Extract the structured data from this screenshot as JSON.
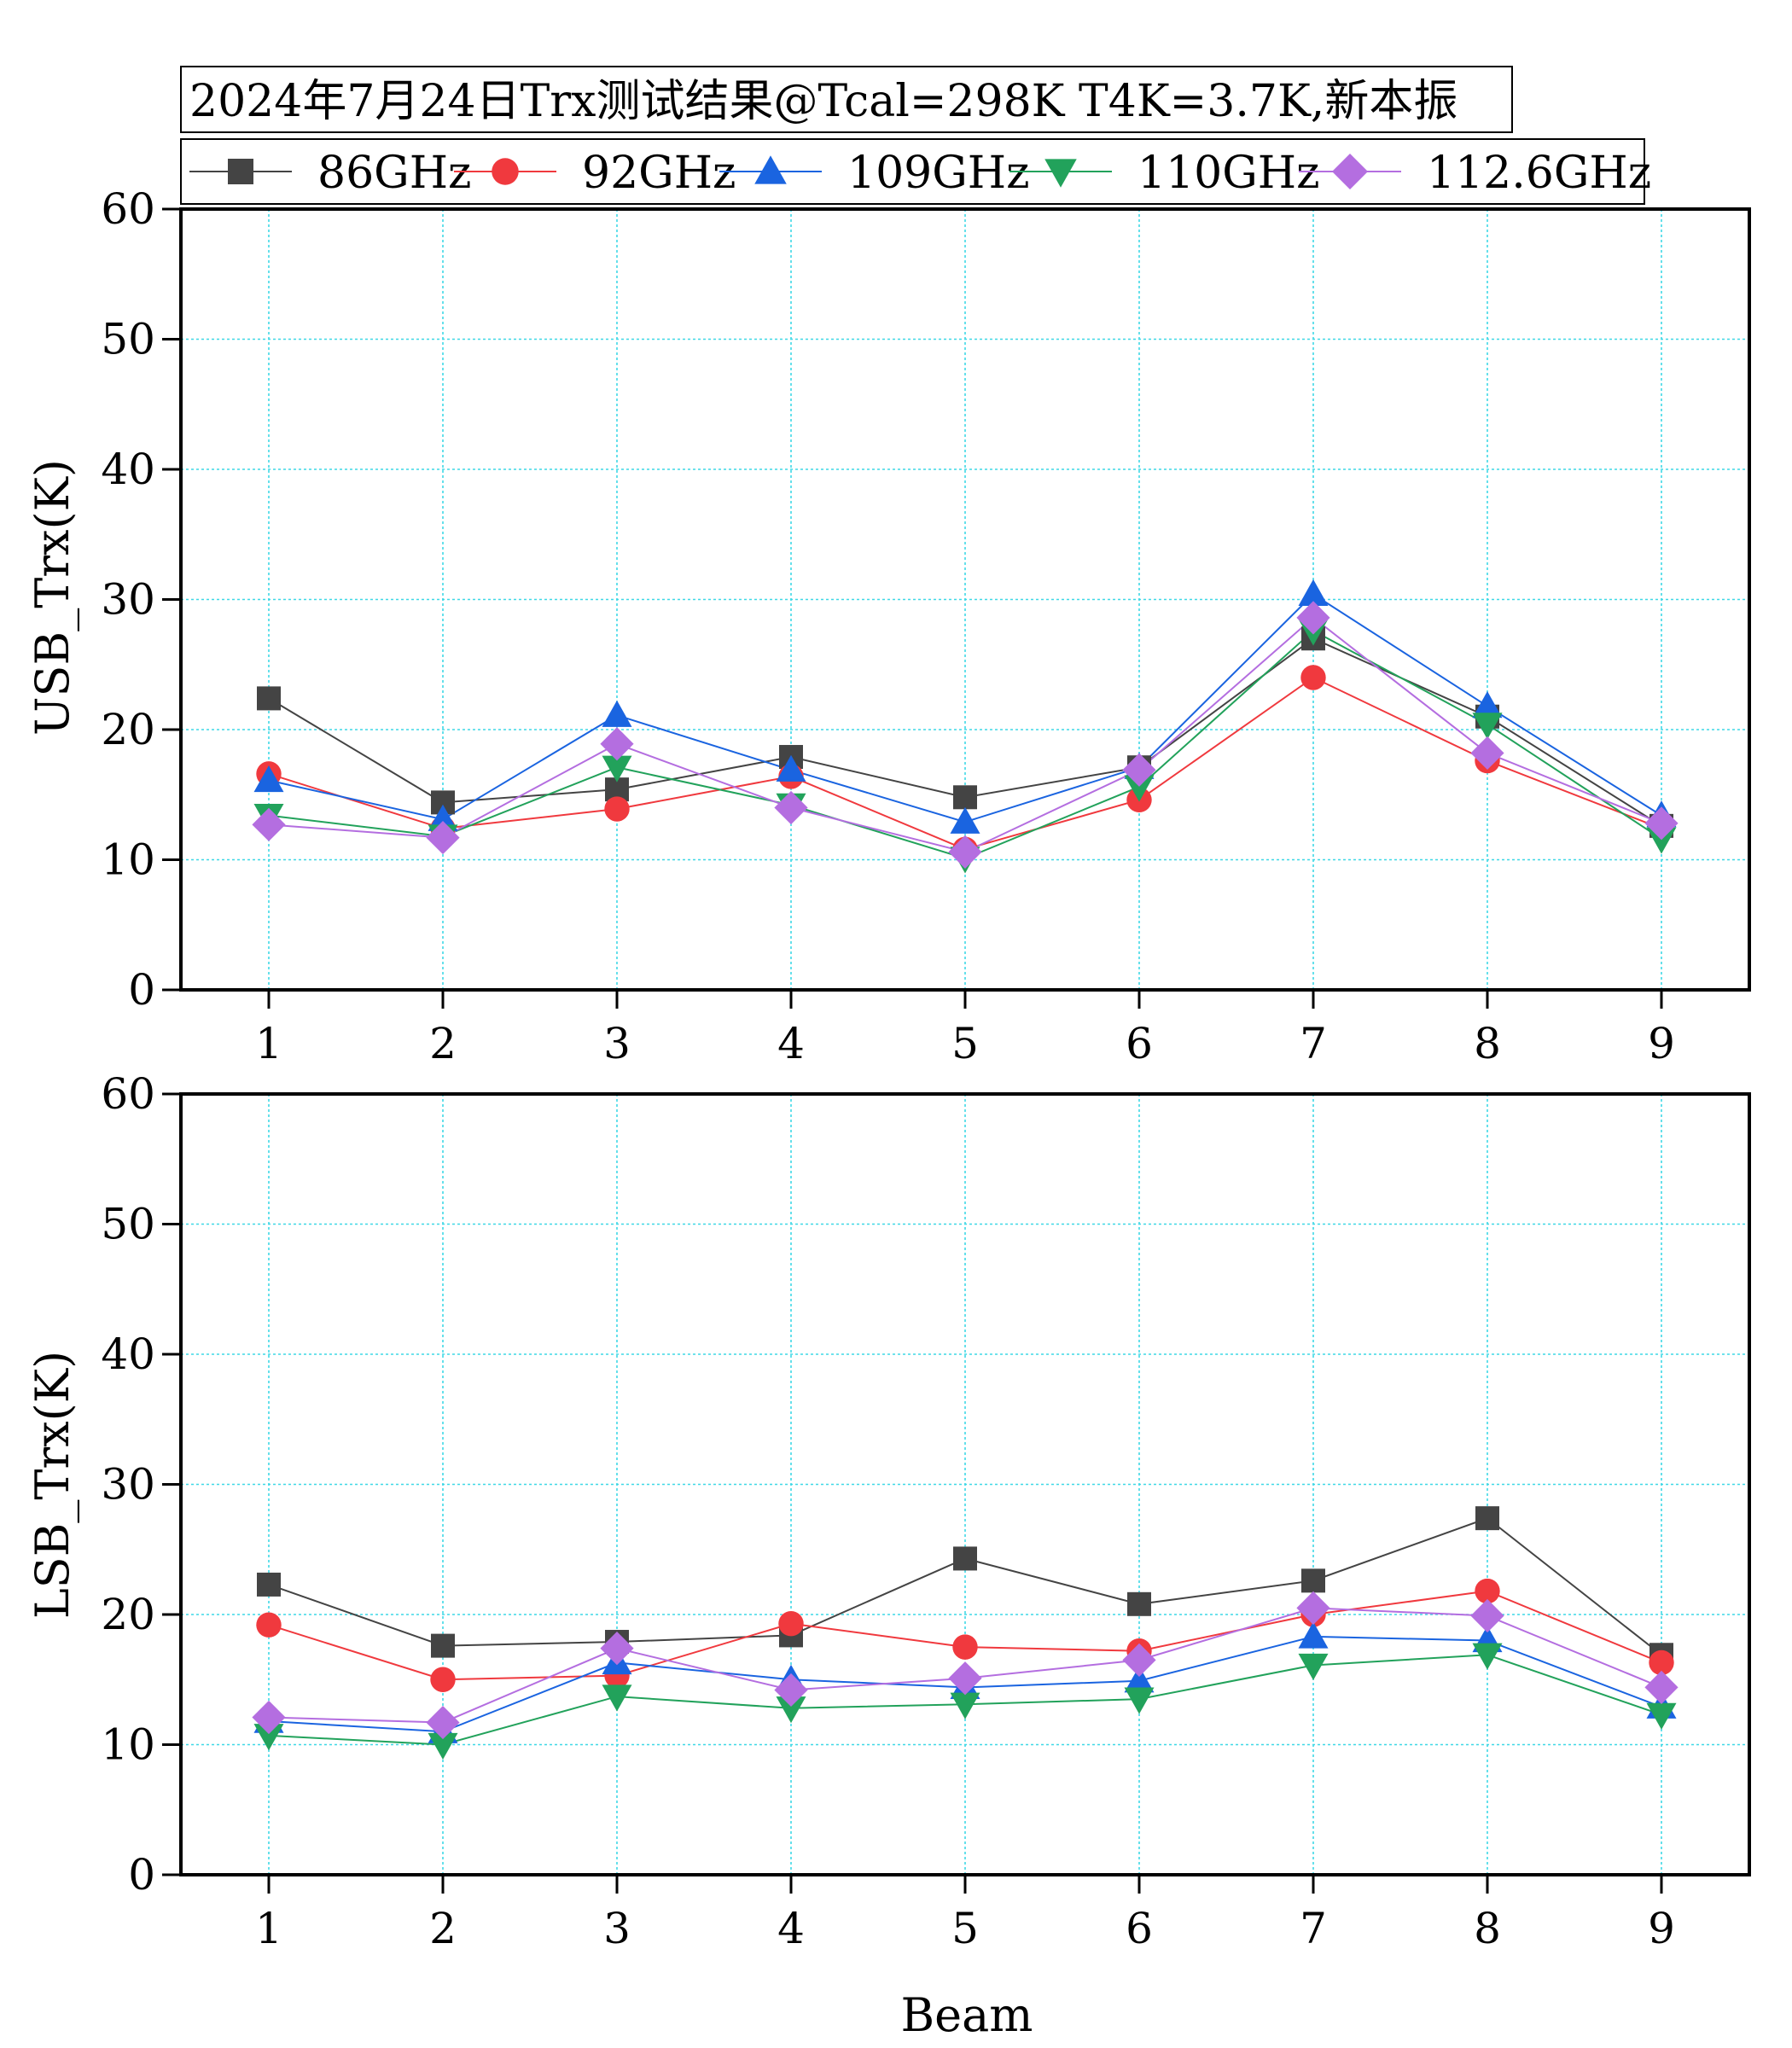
{
  "title": "2024年7月24日Trx测试结果@Tcal=298K T4K=3.7K,新本振",
  "xlabel": "Beam",
  "legend": [
    {
      "name": "86GHz",
      "color": "#444444",
      "marker": "square"
    },
    {
      "name": "92GHz",
      "color": "#f0393e",
      "marker": "circle"
    },
    {
      "name": "109GHz",
      "color": "#1a64e0",
      "marker": "triangle-up"
    },
    {
      "name": "110GHz",
      "color": "#22a25b",
      "marker": "triangle-down"
    },
    {
      "name": "112.6GHz",
      "color": "#b46ee0",
      "marker": "diamond"
    }
  ],
  "chart_data": [
    {
      "type": "line",
      "ylabel": "USB_Trx(K)",
      "x": [
        1,
        2,
        3,
        4,
        5,
        6,
        7,
        8,
        9
      ],
      "ylim": [
        0,
        60
      ],
      "yticks": [
        0,
        10,
        20,
        30,
        40,
        50,
        60
      ],
      "grid": true,
      "series": [
        {
          "name": "86GHz",
          "values": [
            22.4,
            14.4,
            15.4,
            17.9,
            14.8,
            17.1,
            27.0,
            21.0,
            12.6
          ]
        },
        {
          "name": "92GHz",
          "values": [
            16.6,
            12.4,
            13.9,
            16.4,
            10.8,
            14.6,
            24.0,
            17.6,
            12.4
          ]
        },
        {
          "name": "109GHz",
          "values": [
            16.1,
            13.1,
            21.1,
            16.9,
            12.9,
            17.1,
            30.4,
            21.8,
            13.4
          ]
        },
        {
          "name": "110GHz",
          "values": [
            13.4,
            11.8,
            17.1,
            14.2,
            10.1,
            15.6,
            27.6,
            20.4,
            11.6
          ]
        },
        {
          "name": "112.6GHz",
          "values": [
            12.7,
            11.7,
            18.9,
            14.0,
            10.6,
            16.9,
            28.6,
            18.2,
            12.8
          ]
        }
      ]
    },
    {
      "type": "line",
      "ylabel": "LSB_Trx(K)",
      "xlabel": "Beam",
      "x": [
        1,
        2,
        3,
        4,
        5,
        6,
        7,
        8,
        9
      ],
      "ylim": [
        0,
        60
      ],
      "yticks": [
        0,
        10,
        20,
        30,
        40,
        50,
        60
      ],
      "grid": true,
      "series": [
        {
          "name": "86GHz",
          "values": [
            22.3,
            17.6,
            17.9,
            18.4,
            24.3,
            20.8,
            22.6,
            27.4,
            16.9
          ]
        },
        {
          "name": "92GHz",
          "values": [
            19.2,
            15.0,
            15.3,
            19.3,
            17.5,
            17.2,
            20.0,
            21.8,
            16.3
          ]
        },
        {
          "name": "109GHz",
          "values": [
            11.8,
            11.0,
            16.3,
            15.0,
            14.4,
            14.9,
            18.3,
            18.0,
            12.9
          ]
        },
        {
          "name": "110GHz",
          "values": [
            10.7,
            10.0,
            13.7,
            12.8,
            13.1,
            13.5,
            16.1,
            16.9,
            12.3
          ]
        },
        {
          "name": "112.6GHz",
          "values": [
            12.1,
            11.7,
            17.4,
            14.2,
            15.1,
            16.5,
            20.5,
            19.9,
            14.4
          ]
        }
      ]
    }
  ]
}
